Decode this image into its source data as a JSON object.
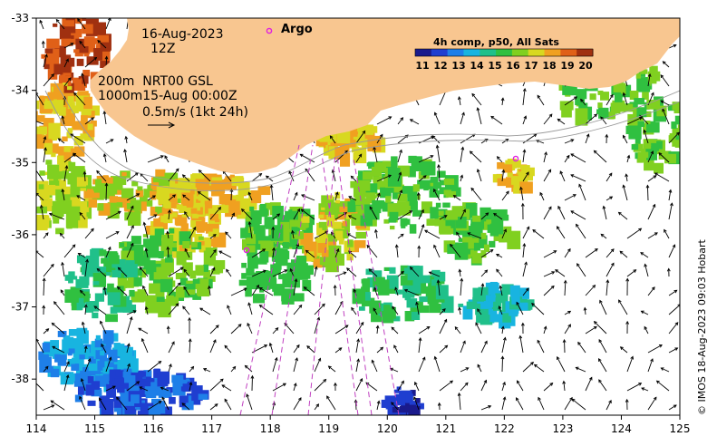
{
  "date_line": "16-Aug-2023",
  "time_line": "12Z",
  "product_line1": "200m  NRT00 GSL",
  "product_line2": "1000m15-Aug 00:00Z",
  "scale_label": "0.5m/s (1kt 24h)",
  "argo_label": "Argo",
  "colorbar": {
    "title": "4h comp, p50, All Sats",
    "ticks": [
      "11",
      "12",
      "13",
      "14",
      "15",
      "16",
      "17",
      "18",
      "19",
      "20"
    ],
    "colors": [
      "#1a1a8c",
      "#1f3ed0",
      "#1e7fe8",
      "#18b4e0",
      "#20c08a",
      "#30c040",
      "#80d020",
      "#d8d820",
      "#f0a020",
      "#e06018",
      "#a03010"
    ]
  },
  "credit": "© IMOS 18-Aug-2023 09:03 Hobart",
  "axes": {
    "x_ticks": [
      "114",
      "115",
      "116",
      "117",
      "118",
      "119",
      "120",
      "121",
      "122",
      "123",
      "124",
      "125"
    ],
    "y_ticks": [
      "-33",
      "-34",
      "-35",
      "-36",
      "-37",
      "-38"
    ],
    "lon_range": [
      114,
      125
    ],
    "lat_range": [
      -38.5,
      -33
    ]
  },
  "colors": {
    "land": "#f8c690",
    "argo": "#e020e0",
    "track": "#c040c0"
  }
}
